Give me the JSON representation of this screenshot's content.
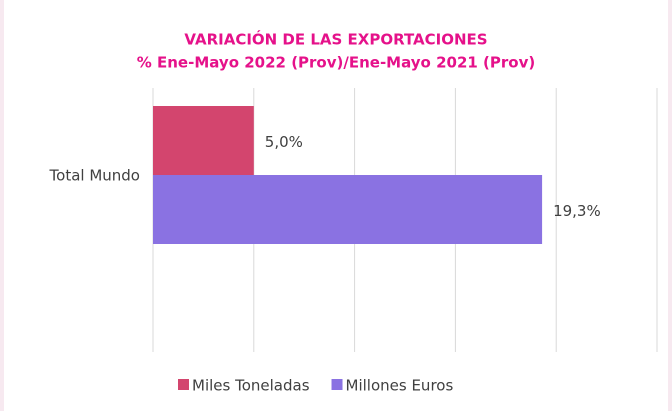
{
  "chart_data": {
    "type": "hbar",
    "title": "VARIACIÓN DE LAS EXPORTACIONES",
    "subtitle": "% Ene-Mayo 2022 (Prov)/Ene-Mayo 2021 (Prov)",
    "categories": [
      "Total Mundo"
    ],
    "series": [
      {
        "name": "Miles Toneladas",
        "color": "#d3456e",
        "values": [
          5.0
        ],
        "value_labels": [
          "5,0%"
        ]
      },
      {
        "name": "Millones Euros",
        "color": "#8a72e2",
        "values": [
          19.3
        ],
        "value_labels": [
          "19,3%"
        ]
      }
    ],
    "xlim": [
      0,
      25
    ],
    "xticks": [
      0,
      5,
      10,
      15,
      20,
      25
    ],
    "grid": true,
    "legend": "bottom"
  }
}
